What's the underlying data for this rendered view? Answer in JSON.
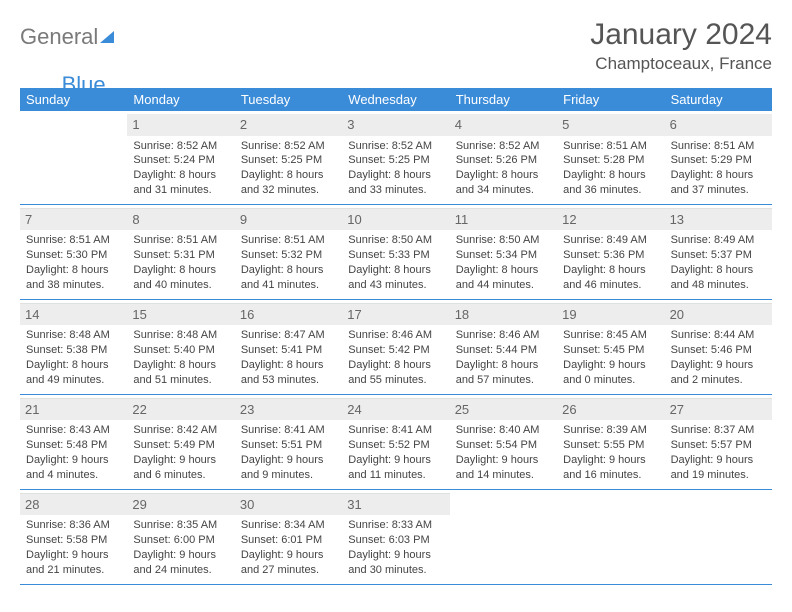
{
  "logo": {
    "part1": "General",
    "part2": "Blue"
  },
  "title": "January 2024",
  "location": "Champtoceaux, France",
  "weekday_header_bg": "#3a8bd8",
  "week_border_color": "#3a8bd8",
  "daynum_bg": "#ededed",
  "weekdays": [
    "Sunday",
    "Monday",
    "Tuesday",
    "Wednesday",
    "Thursday",
    "Friday",
    "Saturday"
  ],
  "weeks": [
    [
      {
        "num": "",
        "lines": [
          "",
          "",
          "",
          ""
        ]
      },
      {
        "num": "1",
        "lines": [
          "Sunrise: 8:52 AM",
          "Sunset: 5:24 PM",
          "Daylight: 8 hours",
          "and 31 minutes."
        ]
      },
      {
        "num": "2",
        "lines": [
          "Sunrise: 8:52 AM",
          "Sunset: 5:25 PM",
          "Daylight: 8 hours",
          "and 32 minutes."
        ]
      },
      {
        "num": "3",
        "lines": [
          "Sunrise: 8:52 AM",
          "Sunset: 5:25 PM",
          "Daylight: 8 hours",
          "and 33 minutes."
        ]
      },
      {
        "num": "4",
        "lines": [
          "Sunrise: 8:52 AM",
          "Sunset: 5:26 PM",
          "Daylight: 8 hours",
          "and 34 minutes."
        ]
      },
      {
        "num": "5",
        "lines": [
          "Sunrise: 8:51 AM",
          "Sunset: 5:28 PM",
          "Daylight: 8 hours",
          "and 36 minutes."
        ]
      },
      {
        "num": "6",
        "lines": [
          "Sunrise: 8:51 AM",
          "Sunset: 5:29 PM",
          "Daylight: 8 hours",
          "and 37 minutes."
        ]
      }
    ],
    [
      {
        "num": "7",
        "lines": [
          "Sunrise: 8:51 AM",
          "Sunset: 5:30 PM",
          "Daylight: 8 hours",
          "and 38 minutes."
        ]
      },
      {
        "num": "8",
        "lines": [
          "Sunrise: 8:51 AM",
          "Sunset: 5:31 PM",
          "Daylight: 8 hours",
          "and 40 minutes."
        ]
      },
      {
        "num": "9",
        "lines": [
          "Sunrise: 8:51 AM",
          "Sunset: 5:32 PM",
          "Daylight: 8 hours",
          "and 41 minutes."
        ]
      },
      {
        "num": "10",
        "lines": [
          "Sunrise: 8:50 AM",
          "Sunset: 5:33 PM",
          "Daylight: 8 hours",
          "and 43 minutes."
        ]
      },
      {
        "num": "11",
        "lines": [
          "Sunrise: 8:50 AM",
          "Sunset: 5:34 PM",
          "Daylight: 8 hours",
          "and 44 minutes."
        ]
      },
      {
        "num": "12",
        "lines": [
          "Sunrise: 8:49 AM",
          "Sunset: 5:36 PM",
          "Daylight: 8 hours",
          "and 46 minutes."
        ]
      },
      {
        "num": "13",
        "lines": [
          "Sunrise: 8:49 AM",
          "Sunset: 5:37 PM",
          "Daylight: 8 hours",
          "and 48 minutes."
        ]
      }
    ],
    [
      {
        "num": "14",
        "lines": [
          "Sunrise: 8:48 AM",
          "Sunset: 5:38 PM",
          "Daylight: 8 hours",
          "and 49 minutes."
        ]
      },
      {
        "num": "15",
        "lines": [
          "Sunrise: 8:48 AM",
          "Sunset: 5:40 PM",
          "Daylight: 8 hours",
          "and 51 minutes."
        ]
      },
      {
        "num": "16",
        "lines": [
          "Sunrise: 8:47 AM",
          "Sunset: 5:41 PM",
          "Daylight: 8 hours",
          "and 53 minutes."
        ]
      },
      {
        "num": "17",
        "lines": [
          "Sunrise: 8:46 AM",
          "Sunset: 5:42 PM",
          "Daylight: 8 hours",
          "and 55 minutes."
        ]
      },
      {
        "num": "18",
        "lines": [
          "Sunrise: 8:46 AM",
          "Sunset: 5:44 PM",
          "Daylight: 8 hours",
          "and 57 minutes."
        ]
      },
      {
        "num": "19",
        "lines": [
          "Sunrise: 8:45 AM",
          "Sunset: 5:45 PM",
          "Daylight: 9 hours",
          "and 0 minutes."
        ]
      },
      {
        "num": "20",
        "lines": [
          "Sunrise: 8:44 AM",
          "Sunset: 5:46 PM",
          "Daylight: 9 hours",
          "and 2 minutes."
        ]
      }
    ],
    [
      {
        "num": "21",
        "lines": [
          "Sunrise: 8:43 AM",
          "Sunset: 5:48 PM",
          "Daylight: 9 hours",
          "and 4 minutes."
        ]
      },
      {
        "num": "22",
        "lines": [
          "Sunrise: 8:42 AM",
          "Sunset: 5:49 PM",
          "Daylight: 9 hours",
          "and 6 minutes."
        ]
      },
      {
        "num": "23",
        "lines": [
          "Sunrise: 8:41 AM",
          "Sunset: 5:51 PM",
          "Daylight: 9 hours",
          "and 9 minutes."
        ]
      },
      {
        "num": "24",
        "lines": [
          "Sunrise: 8:41 AM",
          "Sunset: 5:52 PM",
          "Daylight: 9 hours",
          "and 11 minutes."
        ]
      },
      {
        "num": "25",
        "lines": [
          "Sunrise: 8:40 AM",
          "Sunset: 5:54 PM",
          "Daylight: 9 hours",
          "and 14 minutes."
        ]
      },
      {
        "num": "26",
        "lines": [
          "Sunrise: 8:39 AM",
          "Sunset: 5:55 PM",
          "Daylight: 9 hours",
          "and 16 minutes."
        ]
      },
      {
        "num": "27",
        "lines": [
          "Sunrise: 8:37 AM",
          "Sunset: 5:57 PM",
          "Daylight: 9 hours",
          "and 19 minutes."
        ]
      }
    ],
    [
      {
        "num": "28",
        "lines": [
          "Sunrise: 8:36 AM",
          "Sunset: 5:58 PM",
          "Daylight: 9 hours",
          "and 21 minutes."
        ]
      },
      {
        "num": "29",
        "lines": [
          "Sunrise: 8:35 AM",
          "Sunset: 6:00 PM",
          "Daylight: 9 hours",
          "and 24 minutes."
        ]
      },
      {
        "num": "30",
        "lines": [
          "Sunrise: 8:34 AM",
          "Sunset: 6:01 PM",
          "Daylight: 9 hours",
          "and 27 minutes."
        ]
      },
      {
        "num": "31",
        "lines": [
          "Sunrise: 8:33 AM",
          "Sunset: 6:03 PM",
          "Daylight: 9 hours",
          "and 30 minutes."
        ]
      },
      {
        "num": "",
        "lines": [
          "",
          "",
          "",
          ""
        ]
      },
      {
        "num": "",
        "lines": [
          "",
          "",
          "",
          ""
        ]
      },
      {
        "num": "",
        "lines": [
          "",
          "",
          "",
          ""
        ]
      }
    ]
  ]
}
